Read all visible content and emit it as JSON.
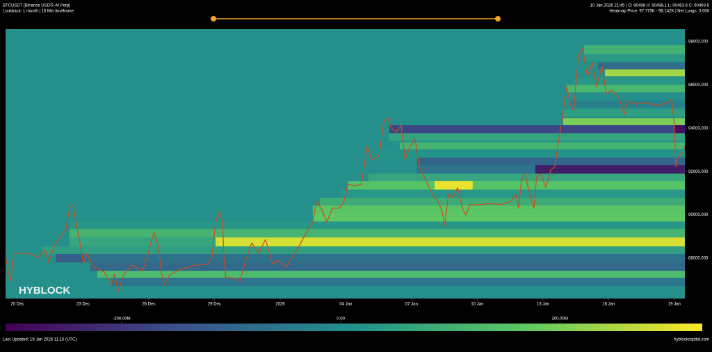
{
  "chart_data": {
    "type": "line",
    "title": "BTCUSDT (Binance USDⓈ-M Perp)",
    "subtitle": "Lookback: 1 month | 15 Min timeframe",
    "info": [
      "10 Jan 2026 21:45 | O: 90498 H: 90498.1 L: 90463.6 C: 90469.9",
      "Heatmap Price: 97.775K - 98.142K | Net Longs: 0.000"
    ],
    "watermark": "HYBLOCK",
    "footer": "Last Updated: 19 Jan 2026 11:15 (UTC)",
    "source": "hyblockcapital.com",
    "background": "#25908b",
    "xlim": [
      -0.54,
      30.48
    ],
    "xticks": [
      {
        "value": 0,
        "label": "20 Dec"
      },
      {
        "value": 3,
        "label": "23 Dec"
      },
      {
        "value": 6,
        "label": "26 Dec"
      },
      {
        "value": 9,
        "label": "29 Dec"
      },
      {
        "value": 12,
        "label": "2026"
      },
      {
        "value": 15,
        "label": "04 Jan"
      },
      {
        "value": 18,
        "label": "07 Jan"
      },
      {
        "value": 21,
        "label": "10 Jan"
      },
      {
        "value": 24,
        "label": "13 Jan"
      },
      {
        "value": 27,
        "label": "16 Jan"
      },
      {
        "value": 30,
        "label": "19 Jan"
      }
    ],
    "ylim": [
      86140,
      98580
    ],
    "yticks": [
      {
        "value": 88000,
        "label": "88000.000"
      },
      {
        "value": 90000,
        "label": "90000.000"
      },
      {
        "value": 92000,
        "label": "92000.000"
      },
      {
        "value": 94000,
        "label": "94000.000"
      },
      {
        "value": 96000,
        "label": "96000.000"
      },
      {
        "value": 98000,
        "label": "98000.000"
      }
    ],
    "series": [
      {
        "color": "#cf4a1f",
        "x": [
          -0.54,
          -0.32,
          -0.16,
          0.48,
          0.95,
          1.27,
          1.43,
          1.68,
          2.22,
          2.38,
          2.54,
          2.7,
          2.86,
          3.02,
          3.17,
          3.49,
          3.97,
          4.29,
          4.44,
          4.6,
          4.86,
          5.24,
          5.71,
          5.94,
          6.13,
          6.25,
          6.44,
          6.57,
          6.7,
          6.98,
          7.46,
          8.1,
          8.73,
          8.89,
          9.05,
          9.21,
          9.37,
          9.43,
          9.52,
          9.84,
          10.16,
          10.38,
          10.7,
          11.02,
          11.33,
          11.65,
          11.9,
          12.29,
          12.54,
          12.86,
          13.11,
          13.49,
          13.65,
          13.87,
          14.13,
          14.38,
          14.7,
          14.92,
          15.08,
          15.4,
          15.71,
          15.97,
          16.19,
          16.51,
          16.73,
          16.92,
          17.08,
          17.3,
          17.52,
          17.71,
          17.94,
          18.16,
          18.35,
          18.51,
          18.73,
          18.95,
          19.21,
          19.4,
          19.52,
          19.68,
          19.9,
          20.1,
          20.32,
          20.48,
          20.67,
          21.11,
          21.59,
          22.06,
          22.54,
          22.76,
          22.89,
          23.02,
          23.17,
          23.4,
          23.59,
          23.71,
          23.9,
          24.13,
          24.35,
          24.54,
          24.7,
          24.86,
          25.08,
          25.24,
          25.4,
          25.62,
          25.81,
          26.03,
          26.25,
          26.44,
          26.7,
          26.89,
          27.14,
          27.46,
          27.71,
          27.87,
          28.25,
          28.73,
          29.21,
          29.68,
          29.87,
          30.0,
          30.06,
          30.19,
          30.38,
          30.48
        ],
        "values": [
          88060,
          86940,
          88230,
          88230,
          88060,
          88390,
          87810,
          88550,
          89350,
          90310,
          90470,
          89510,
          88710,
          87740,
          88230,
          87580,
          87360,
          86780,
          87260,
          86460,
          87260,
          87680,
          87420,
          88060,
          88870,
          89190,
          88550,
          87420,
          86780,
          87260,
          87490,
          87680,
          87740,
          88060,
          89670,
          90150,
          89670,
          88060,
          87100,
          87100,
          86940,
          87740,
          88710,
          88230,
          88870,
          87740,
          87900,
          87580,
          88060,
          88550,
          89030,
          89670,
          90630,
          90310,
          89670,
          90310,
          90310,
          90630,
          91430,
          91330,
          91430,
          93190,
          92550,
          92710,
          94310,
          94470,
          93990,
          93830,
          94150,
          92550,
          93190,
          93510,
          92230,
          91910,
          91430,
          90950,
          90630,
          90150,
          89510,
          90950,
          90790,
          91270,
          90310,
          89990,
          90470,
          90470,
          90530,
          90470,
          90630,
          90950,
          90310,
          91590,
          91910,
          90950,
          90310,
          91750,
          91910,
          91270,
          92070,
          92230,
          93350,
          94310,
          95920,
          95120,
          94800,
          97360,
          97680,
          96400,
          97040,
          95920,
          96880,
          95600,
          95760,
          95440,
          94640,
          95280,
          95120,
          95180,
          95050,
          95180,
          95340,
          94150,
          92230,
          92710,
          92870,
          93190
        ]
      }
    ],
    "heatmap": {
      "colorbar_lim": [
        -306,
        330
      ],
      "colorbar_ticks": [
        {
          "value": -200,
          "label": "-200.00M"
        },
        {
          "value": 0,
          "label": "0.00"
        },
        {
          "value": 200,
          "label": "200.00M"
        }
      ],
      "bands": [
        {
          "start": 25.87,
          "end": 30.48,
          "low": 97420,
          "high": 97840,
          "value": 100
        },
        {
          "start": 25.87,
          "end": 30.48,
          "low": 97100,
          "high": 97420,
          "value": 40
        },
        {
          "start": 26.51,
          "end": 30.48,
          "low": 96720,
          "high": 97040,
          "value": -80
        },
        {
          "start": 26.83,
          "end": 30.48,
          "low": 96400,
          "high": 96720,
          "value": 240
        },
        {
          "start": 25.4,
          "end": 30.48,
          "low": 96010,
          "high": 96330,
          "value": 30
        },
        {
          "start": 25.08,
          "end": 30.48,
          "low": 95660,
          "high": 96010,
          "value": 120
        },
        {
          "start": 25.24,
          "end": 30.48,
          "low": 94960,
          "high": 95280,
          "value": -30
        },
        {
          "start": 24.92,
          "end": 30.48,
          "low": 94540,
          "high": 94890,
          "value": 50
        },
        {
          "start": 24.92,
          "end": 30.48,
          "low": 94150,
          "high": 94470,
          "value": 200
        },
        {
          "start": 16.98,
          "end": 30.48,
          "low": 93770,
          "high": 94150,
          "value": -170
        },
        {
          "start": 30.0,
          "end": 30.48,
          "low": 93770,
          "high": 94150,
          "value": -280
        },
        {
          "start": 16.98,
          "end": 30.48,
          "low": 93420,
          "high": 93770,
          "value": 60
        },
        {
          "start": 17.46,
          "end": 30.48,
          "low": 93030,
          "high": 93350,
          "value": 110
        },
        {
          "start": 16.35,
          "end": 30.48,
          "low": 92650,
          "high": 93030,
          "value": 20
        },
        {
          "start": 18.25,
          "end": 30.48,
          "low": 92300,
          "high": 92650,
          "value": -100
        },
        {
          "start": 18.25,
          "end": 23.65,
          "low": 91910,
          "high": 92300,
          "value": -60
        },
        {
          "start": 23.65,
          "end": 30.48,
          "low": 91910,
          "high": 92300,
          "value": -250
        },
        {
          "start": 16.03,
          "end": 30.48,
          "low": 91560,
          "high": 91910,
          "value": 70
        },
        {
          "start": 15.08,
          "end": 30.48,
          "low": 91170,
          "high": 91560,
          "value": 150
        },
        {
          "start": 19.05,
          "end": 20.79,
          "low": 91170,
          "high": 91560,
          "value": 310
        },
        {
          "start": 14.76,
          "end": 30.48,
          "low": 90790,
          "high": 91170,
          "value": 30
        },
        {
          "start": 13.81,
          "end": 30.48,
          "low": 90440,
          "high": 90790,
          "value": 90
        },
        {
          "start": 13.49,
          "end": 30.48,
          "low": 90080,
          "high": 90440,
          "value": 160
        },
        {
          "start": 13.49,
          "end": 30.48,
          "low": 89700,
          "high": 90080,
          "value": 170
        },
        {
          "start": 2.38,
          "end": 30.48,
          "low": 89350,
          "high": 89700,
          "value": 30
        },
        {
          "start": 2.38,
          "end": 30.48,
          "low": 88960,
          "high": 89350,
          "value": 110
        },
        {
          "start": 2.38,
          "end": 9.05,
          "low": 88550,
          "high": 88960,
          "value": 70
        },
        {
          "start": 9.05,
          "end": 30.48,
          "low": 88550,
          "high": 88960,
          "value": 290
        },
        {
          "start": 1.11,
          "end": 30.48,
          "low": 88190,
          "high": 88550,
          "value": 50
        },
        {
          "start": 1.75,
          "end": 30.48,
          "low": 87810,
          "high": 88190,
          "value": -70
        },
        {
          "start": 1.75,
          "end": 3.02,
          "low": 87810,
          "high": 88190,
          "value": -120
        },
        {
          "start": 3.33,
          "end": 30.48,
          "low": 87420,
          "high": 87810,
          "value": -90
        },
        {
          "start": 3.65,
          "end": 30.48,
          "low": 87100,
          "high": 87420,
          "value": 130
        },
        {
          "start": 4.29,
          "end": 30.48,
          "low": 86720,
          "high": 87100,
          "value": -60
        }
      ]
    }
  }
}
